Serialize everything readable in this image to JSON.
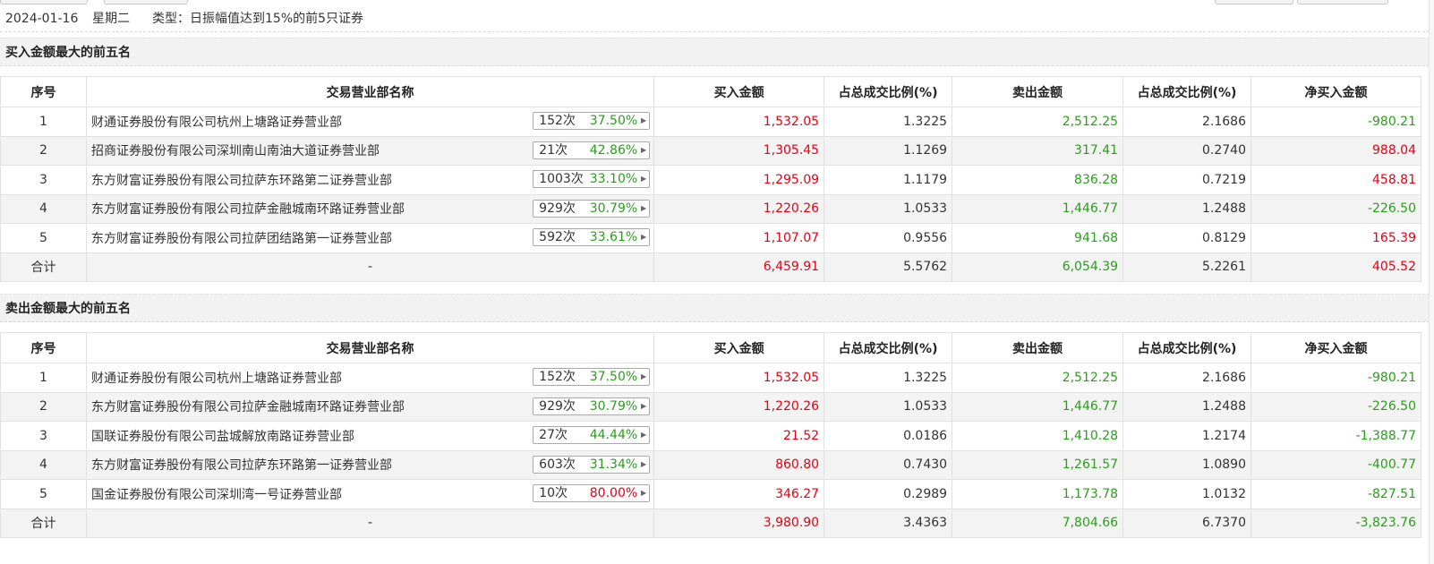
{
  "info": {
    "date": "2024-01-16",
    "weekday": "星期二",
    "type": "类型：日振幅值达到15%的前5只证券"
  },
  "headers": [
    "序号",
    "交易营业部名称",
    "买入金额",
    "占总成交比例(%)",
    "卖出金额",
    "占总成交比例(%)",
    "净买入金额"
  ],
  "colors": {
    "red": "#e60012",
    "green": "#2a9e1c"
  },
  "sections": [
    {
      "title": "买入金额最大的前五名",
      "rows": [
        {
          "idx": "1",
          "name": "财通证券股份有限公司杭州上塘路证券营业部",
          "count": "152次",
          "rate": "37.50%",
          "rate_color": "green",
          "buy": "1,532.05",
          "buy_pct": "1.3225",
          "sell": "2,512.25",
          "sell_pct": "2.1686",
          "net": "-980.21",
          "net_color": "green"
        },
        {
          "idx": "2",
          "name": "招商证券股份有限公司深圳南山南油大道证券营业部",
          "count": "21次",
          "rate": "42.86%",
          "rate_color": "green",
          "buy": "1,305.45",
          "buy_pct": "1.1269",
          "sell": "317.41",
          "sell_pct": "0.2740",
          "net": "988.04",
          "net_color": "red"
        },
        {
          "idx": "3",
          "name": "东方财富证券股份有限公司拉萨东环路第二证券营业部",
          "count": "1003次",
          "rate": "33.10%",
          "rate_color": "green",
          "buy": "1,295.09",
          "buy_pct": "1.1179",
          "sell": "836.28",
          "sell_pct": "0.7219",
          "net": "458.81",
          "net_color": "red"
        },
        {
          "idx": "4",
          "name": "东方财富证券股份有限公司拉萨金融城南环路证券营业部",
          "count": "929次",
          "rate": "30.79%",
          "rate_color": "green",
          "buy": "1,220.26",
          "buy_pct": "1.0533",
          "sell": "1,446.77",
          "sell_pct": "1.2488",
          "net": "-226.50",
          "net_color": "green"
        },
        {
          "idx": "5",
          "name": "东方财富证券股份有限公司拉萨团结路第一证券营业部",
          "count": "592次",
          "rate": "33.61%",
          "rate_color": "green",
          "buy": "1,107.07",
          "buy_pct": "0.9556",
          "sell": "941.68",
          "sell_pct": "0.8129",
          "net": "165.39",
          "net_color": "red"
        }
      ],
      "total": {
        "label": "合计",
        "name": "-",
        "buy": "6,459.91",
        "buy_pct": "5.5762",
        "sell": "6,054.39",
        "sell_pct": "5.2261",
        "net": "405.52",
        "net_color": "red"
      }
    },
    {
      "title": "卖出金额最大的前五名",
      "rows": [
        {
          "idx": "1",
          "name": "财通证券股份有限公司杭州上塘路证券营业部",
          "count": "152次",
          "rate": "37.50%",
          "rate_color": "green",
          "buy": "1,532.05",
          "buy_pct": "1.3225",
          "sell": "2,512.25",
          "sell_pct": "2.1686",
          "net": "-980.21",
          "net_color": "green"
        },
        {
          "idx": "2",
          "name": "东方财富证券股份有限公司拉萨金融城南环路证券营业部",
          "count": "929次",
          "rate": "30.79%",
          "rate_color": "green",
          "buy": "1,220.26",
          "buy_pct": "1.0533",
          "sell": "1,446.77",
          "sell_pct": "1.2488",
          "net": "-226.50",
          "net_color": "green"
        },
        {
          "idx": "3",
          "name": "国联证券股份有限公司盐城解放南路证券营业部",
          "count": "27次",
          "rate": "44.44%",
          "rate_color": "green",
          "buy": "21.52",
          "buy_pct": "0.0186",
          "sell": "1,410.28",
          "sell_pct": "1.2174",
          "net": "-1,388.77",
          "net_color": "green"
        },
        {
          "idx": "4",
          "name": "东方财富证券股份有限公司拉萨东环路第一证券营业部",
          "count": "603次",
          "rate": "31.34%",
          "rate_color": "green",
          "buy": "860.80",
          "buy_pct": "0.7430",
          "sell": "1,261.57",
          "sell_pct": "1.0890",
          "net": "-400.77",
          "net_color": "green"
        },
        {
          "idx": "5",
          "name": "国金证券股份有限公司深圳湾一号证券营业部",
          "count": "10次",
          "rate": "80.00%",
          "rate_color": "red",
          "buy": "346.27",
          "buy_pct": "0.2989",
          "sell": "1,173.78",
          "sell_pct": "1.0132",
          "net": "-827.51",
          "net_color": "green"
        }
      ],
      "total": {
        "label": "合计",
        "name": "-",
        "buy": "3,980.90",
        "buy_pct": "3.4363",
        "sell": "7,804.66",
        "sell_pct": "6.7370",
        "net": "-3,823.76",
        "net_color": "green"
      }
    }
  ]
}
